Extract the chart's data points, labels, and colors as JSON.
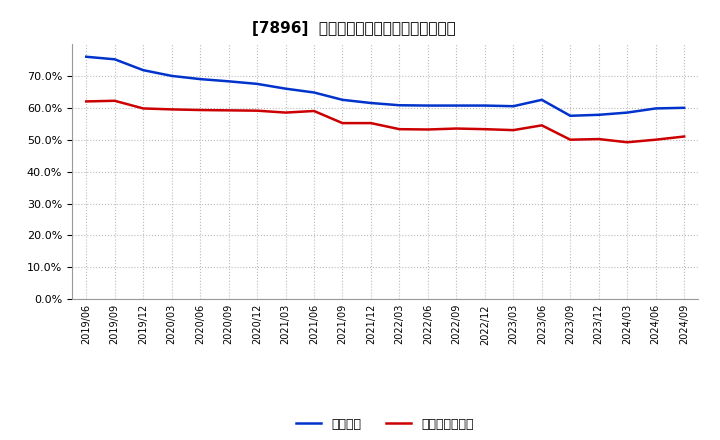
{
  "title": "[7896]  固定比率、固定長期適合率の推移",
  "blue_label": "固定比率",
  "red_label": "固定長期適合率",
  "blue_color": "#0033CC",
  "red_color": "#CC0000",
  "background_color": "#FFFFFF",
  "grid_color": "#AAAAAA",
  "ylim": [
    0.0,
    0.8
  ],
  "yticks": [
    0.0,
    0.1,
    0.2,
    0.3,
    0.4,
    0.5,
    0.6,
    0.7
  ],
  "x_labels": [
    "2019/06",
    "2019/09",
    "2019/12",
    "2020/03",
    "2020/06",
    "2020/09",
    "2020/12",
    "2021/03",
    "2021/06",
    "2021/09",
    "2021/12",
    "2022/03",
    "2022/06",
    "2022/09",
    "2022/12",
    "2023/03",
    "2023/06",
    "2023/09",
    "2023/12",
    "2024/03",
    "2024/06",
    "2024/09"
  ],
  "blue_values": [
    0.76,
    0.752,
    0.718,
    0.7,
    0.69,
    0.683,
    0.675,
    0.66,
    0.648,
    0.625,
    0.615,
    0.608,
    0.607,
    0.607,
    0.607,
    0.605,
    0.625,
    0.575,
    0.578,
    0.585,
    0.598,
    0.6
  ],
  "red_values": [
    0.62,
    0.622,
    0.598,
    0.595,
    0.593,
    0.592,
    0.591,
    0.585,
    0.59,
    0.552,
    0.552,
    0.533,
    0.532,
    0.535,
    0.533,
    0.53,
    0.545,
    0.5,
    0.502,
    0.492,
    0.5,
    0.51
  ]
}
